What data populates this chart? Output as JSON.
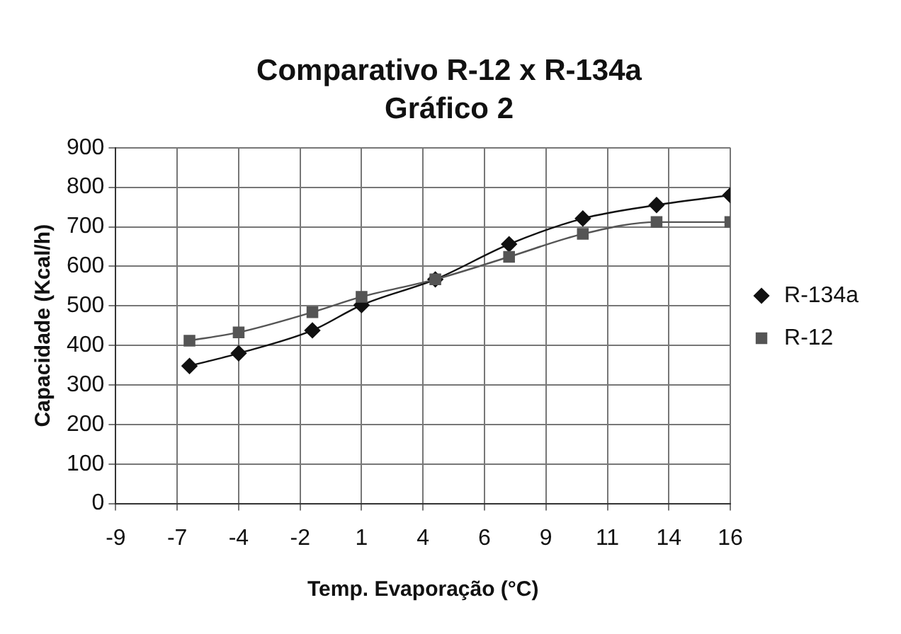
{
  "chart_data": {
    "type": "line",
    "title": "Comparativo R-12 x R-134a",
    "subtitle": "Gráfico 2",
    "xlabel": "Temp. Evaporação (°C)",
    "ylabel": "Capacidade (Kcal/h)",
    "x": [
      -6,
      -4,
      -1,
      1,
      4,
      7,
      10,
      13,
      16
    ],
    "series": [
      {
        "name": "R-134a",
        "color": "#111111",
        "marker": "diamond",
        "values": [
          348,
          380,
          438,
          502,
          567,
          656,
          721,
          755,
          780
        ]
      },
      {
        "name": "R-12",
        "color": "#555555",
        "marker": "square",
        "values": [
          412,
          433,
          484,
          523,
          567,
          624,
          682,
          712,
          712
        ]
      }
    ],
    "xlim": [
      -9,
      16
    ],
    "xticks": [
      -9,
      {
        "value": -6.5,
        "label": "-7"
      },
      -4,
      {
        "value": -1.5,
        "label": "-2"
      },
      1,
      {
        "value": 3.5,
        "label": "4"
      },
      6,
      {
        "value": 8.5,
        "label": "9"
      },
      11,
      {
        "value": 13.5,
        "label": "14"
      },
      16
    ],
    "ylim": [
      0,
      900
    ],
    "yticks": [
      0,
      100,
      200,
      300,
      400,
      500,
      600,
      700,
      800,
      900
    ],
    "grid": true,
    "legend": "right"
  }
}
